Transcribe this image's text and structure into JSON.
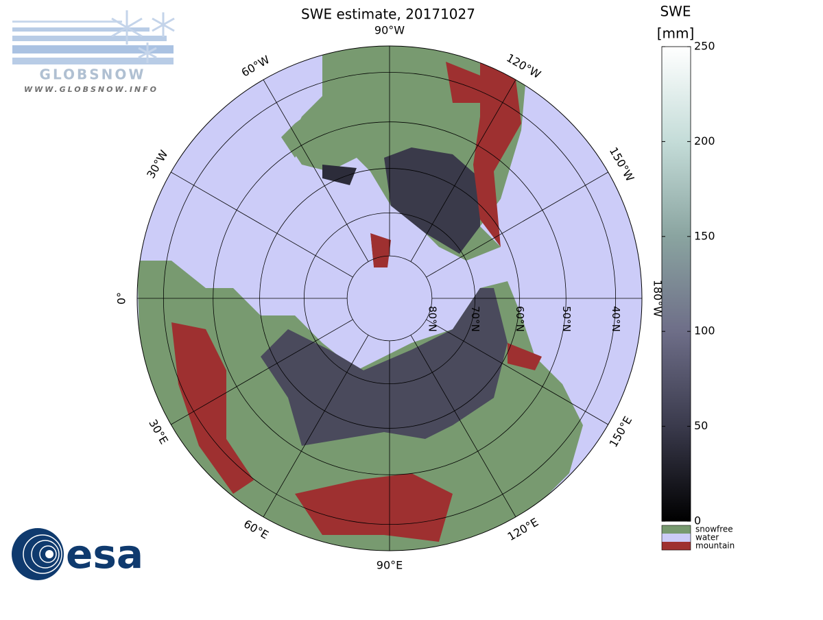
{
  "title": "SWE estimate, 20171027",
  "logos": {
    "globsnow": "GLOBSNOW",
    "globsnow_url": "WWW.GLOBSNOW.INFO",
    "esa": "esa"
  },
  "map": {
    "colors": {
      "snowfree": "#789a70",
      "water": "#ccccf8",
      "mountain": "#9e3030"
    },
    "longitudes": [
      {
        "value": -90,
        "label": "90°W"
      },
      {
        "value": -60,
        "label": "60°W"
      },
      {
        "value": -30,
        "label": "30°W"
      },
      {
        "value": 0,
        "label": "0°"
      },
      {
        "value": 30,
        "label": "30°E"
      },
      {
        "value": 60,
        "label": "60°E"
      },
      {
        "value": 90,
        "label": "90°E"
      },
      {
        "value": 120,
        "label": "120°E"
      },
      {
        "value": 150,
        "label": "150°E"
      },
      {
        "value": 180,
        "label": "180°W"
      },
      {
        "value": -150,
        "label": "150°W"
      },
      {
        "value": -120,
        "label": "120°W"
      }
    ],
    "latitudes": [
      {
        "value": 80,
        "label": "80°N"
      },
      {
        "value": 70,
        "label": "70°N"
      },
      {
        "value": 60,
        "label": "60°N"
      },
      {
        "value": 50,
        "label": "50°N"
      },
      {
        "value": 40,
        "label": "40°N"
      }
    ],
    "min_latitude": 35
  },
  "colorbar": {
    "label": "SWE",
    "unit": "[mm]",
    "lim": [
      0,
      250
    ],
    "ticks": [
      0,
      50,
      100,
      150,
      200,
      250
    ],
    "colormap": [
      "#000000",
      "#3a3a4c",
      "#6e6e88",
      "#8aa4a0",
      "#c4dcd8",
      "#ffffff"
    ]
  },
  "legend": [
    {
      "label": "snowfree",
      "key": "snowfree"
    },
    {
      "label": "water",
      "key": "water"
    },
    {
      "label": "mountain",
      "key": "mountain"
    }
  ]
}
